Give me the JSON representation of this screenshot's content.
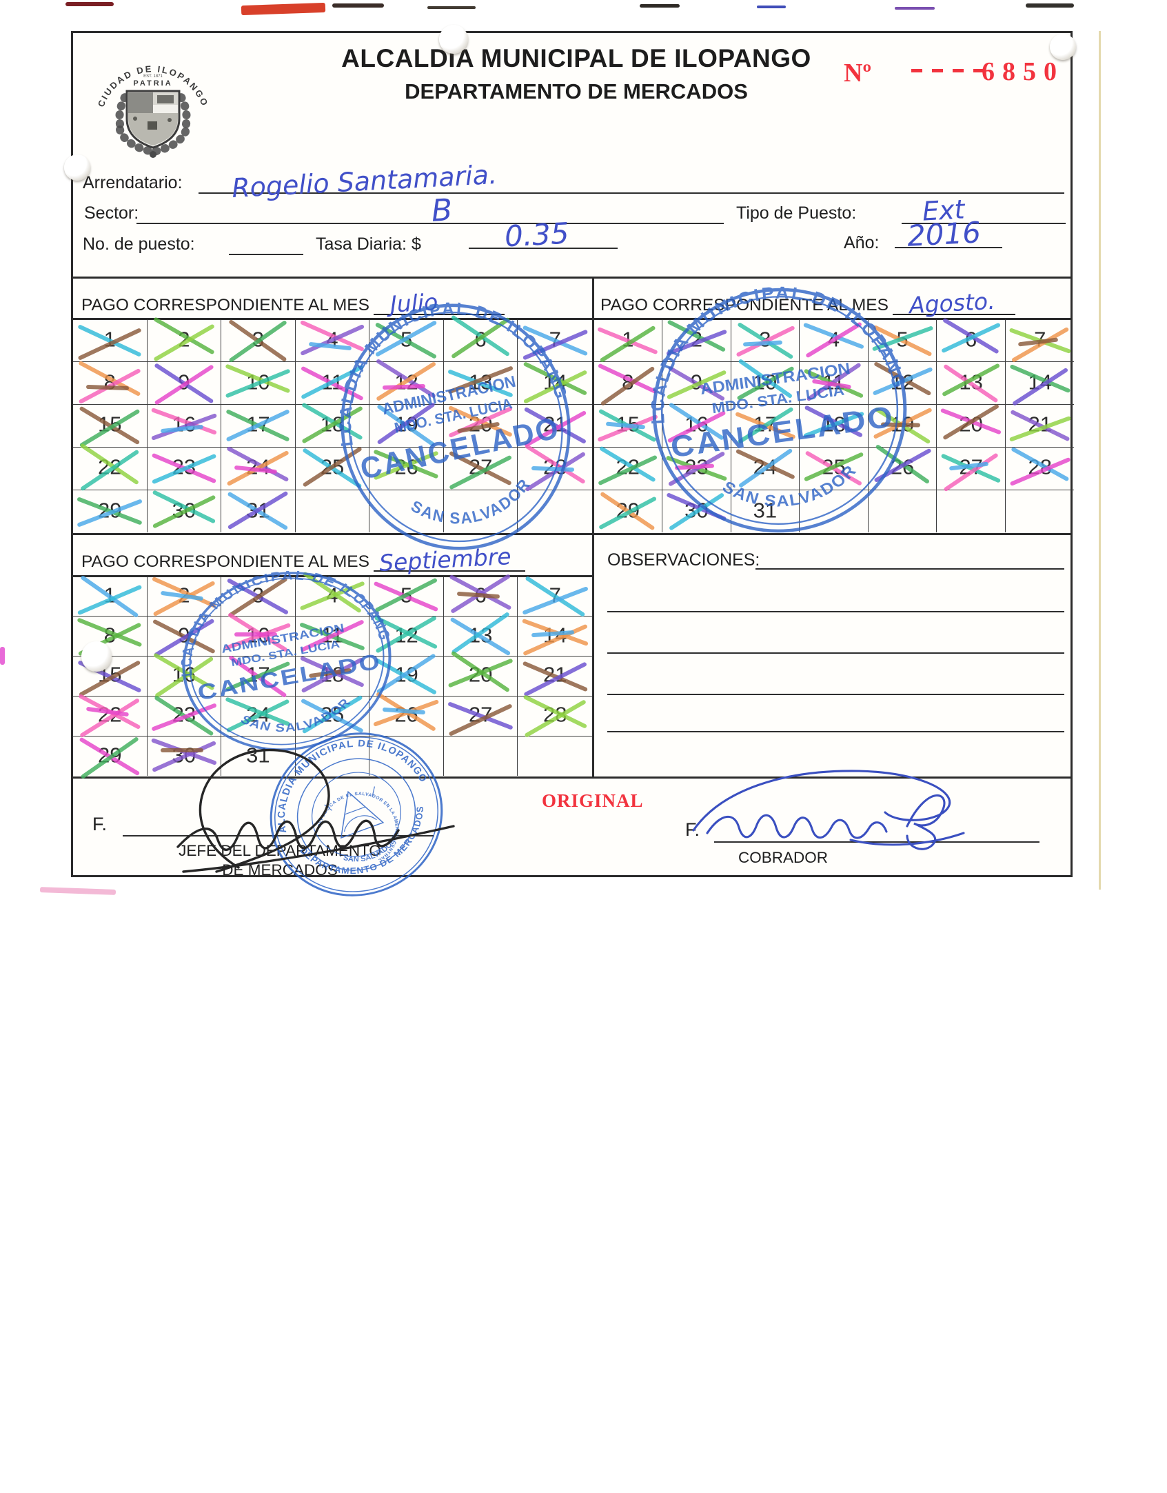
{
  "doc": {
    "title1": "ALCALDIA MUNICIPAL DE ILOPANGO",
    "title2": "DEPARTAMENTO DE MERCADOS",
    "number_label": "Nº",
    "number": "6850",
    "original_label": "ORIGINAL"
  },
  "logo": {
    "arc_text": "CIUDAD DE ILOPANGO",
    "patria": "PATRIA"
  },
  "fields": {
    "arrendatario_label": "Arrendatario:",
    "arrendatario_value": "Rogelio Santamaria.",
    "sector_label": "Sector:",
    "sector_value": "B",
    "tipo_label": "Tipo de Puesto:",
    "tipo_value": "Ext",
    "puesto_label": "No. de puesto:",
    "puesto_value": "",
    "tasa_label": "Tasa Diaria: $",
    "tasa_value": "0.35",
    "anio_label": "Año:",
    "anio_value": "2016"
  },
  "calendars": {
    "header_label": "PAGO CORRESPONDIENTE AL MES",
    "days_total": 31,
    "rows": 5,
    "cols": 7,
    "months": [
      {
        "name": "Julio",
        "crossed_up_to": 31
      },
      {
        "name": "Agosto.",
        "crossed_up_to": 30
      },
      {
        "name": "Septiembre",
        "crossed_up_to": 30
      }
    ]
  },
  "observaciones": {
    "label": "OBSERVACIONES:"
  },
  "stamp_cancelado": {
    "ring_text": "ALCALDIA MUNICIPAL DE ILOPANGO",
    "line1": "ADMINISTRACION",
    "line2": "MDO. STA. LUCIA",
    "line3": "CANCELADO",
    "bottom_text": "SAN SALVADOR"
  },
  "stamp_seal": {
    "ring_top": "ALCALDIA MUNICIPAL DE ILOPANGO",
    "ring_mid": "DEPARTAMENTO DE MERCADOS",
    "ring_bottom": "· SAN SALVADOR ·",
    "inner_text": "REPUBLICA DE EL SALVADOR EN LA AMERICA CENTRAL"
  },
  "footer": {
    "f_label": "F.",
    "left_role1": "JEFE DEL DEPARTAMENTO",
    "left_role2": "DE MERCADOS",
    "right_role": "COBRADOR"
  },
  "colors": {
    "accent_red": "#f2333e",
    "stamp_blue": "#2d63c6",
    "ink_blue": "#4150c8",
    "x_palette": [
      "#8355cc",
      "#3fae5c",
      "#8fd23f",
      "#8a5a3b",
      "#ef9449",
      "#2fb9d8",
      "#2ebfa3",
      "#e544c9",
      "#f75fb8",
      "#6a4fd0",
      "#57b33e",
      "#49a8e8"
    ]
  }
}
